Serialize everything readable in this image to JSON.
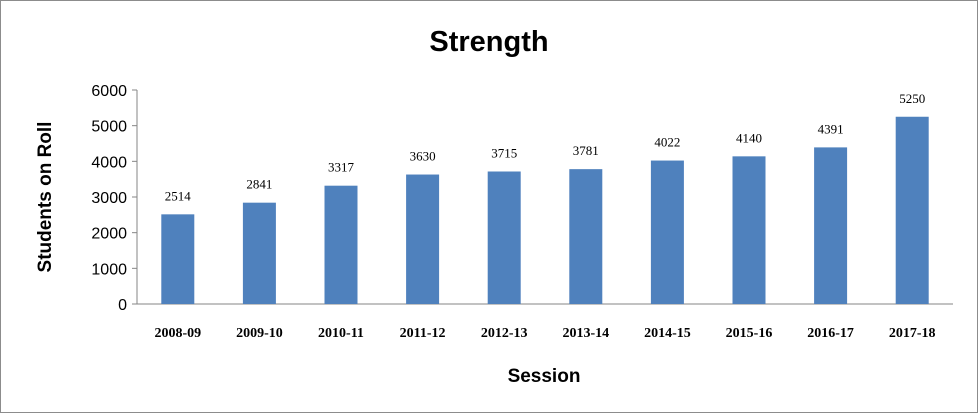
{
  "chart_data": {
    "type": "bar",
    "title": "Strength",
    "xlabel": "Session",
    "ylabel": "Students on Roll",
    "categories": [
      "2008-09",
      "2009-10",
      "2010-11",
      "2011-12",
      "2012-13",
      "2013-14",
      "2014-15",
      "2015-16",
      "2016-17",
      "2017-18"
    ],
    "values": [
      2514,
      2841,
      3317,
      3630,
      3715,
      3781,
      4022,
      4140,
      4391,
      5250
    ],
    "ylim": [
      0,
      6000
    ],
    "yticks": [
      0,
      1000,
      2000,
      3000,
      4000,
      5000,
      6000
    ],
    "grid": false,
    "legend": "none",
    "bar_color": "#4F81BD",
    "data_labels": true
  }
}
